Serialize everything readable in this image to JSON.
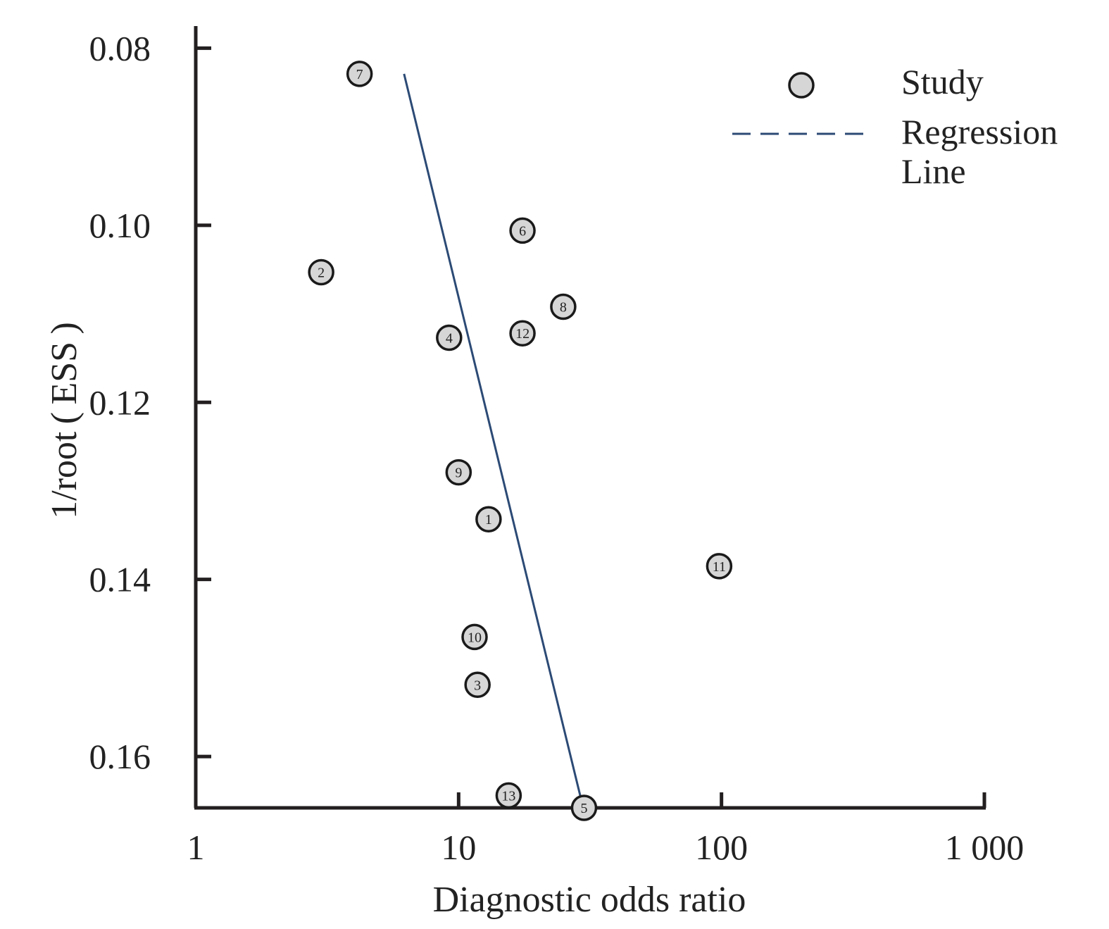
{
  "chart_data": {
    "type": "scatter",
    "xlabel": "Diagnostic odds ratio",
    "ylabel": "1/root ( ESS )",
    "x_scale": "log",
    "xlim": [
      1,
      1000
    ],
    "ylim": [
      0.0775,
      0.1658
    ],
    "y_inverted": true,
    "x_ticks": [
      1,
      10,
      100,
      1000
    ],
    "x_tick_labels": [
      "1",
      "10",
      "100",
      "1 000"
    ],
    "y_ticks": [
      0.08,
      0.1,
      0.12,
      0.14,
      0.16
    ],
    "y_tick_labels": [
      "0.08",
      "0.10",
      "0.12",
      "0.14",
      "0.16"
    ],
    "grid": false,
    "legend_position": "top-right",
    "legend": [
      {
        "label": "Study",
        "marker": "circle"
      },
      {
        "label_lines": [
          "Regression",
          "Line"
        ],
        "marker": "dashed-line"
      }
    ],
    "series": [
      {
        "name": "Study",
        "points": [
          {
            "label": "1",
            "x": 13.0,
            "y": 0.1332
          },
          {
            "label": "2",
            "x": 3.0,
            "y": 0.1053
          },
          {
            "label": "3",
            "x": 11.8,
            "y": 0.1519
          },
          {
            "label": "4",
            "x": 9.2,
            "y": 0.1127
          },
          {
            "label": "5",
            "x": 30.0,
            "y": 0.1658
          },
          {
            "label": "6",
            "x": 17.5,
            "y": 0.1006
          },
          {
            "label": "7",
            "x": 4.2,
            "y": 0.0829
          },
          {
            "label": "8",
            "x": 25.0,
            "y": 0.1092
          },
          {
            "label": "9",
            "x": 10.0,
            "y": 0.1279
          },
          {
            "label": "10",
            "x": 11.5,
            "y": 0.1465
          },
          {
            "label": "11",
            "x": 98.0,
            "y": 0.1385
          },
          {
            "label": "12",
            "x": 17.5,
            "y": 0.1122
          },
          {
            "label": "13",
            "x": 15.5,
            "y": 0.1644
          }
        ]
      },
      {
        "name": "Regression Line",
        "line": [
          {
            "x": 6.2,
            "y": 0.0829
          },
          {
            "x": 29.0,
            "y": 0.1644
          }
        ]
      }
    ],
    "colors": {
      "axis": "#231f20",
      "marker_fill": "#d6d6d6",
      "marker_edge": "#1a1a1a",
      "regression": "#2c4a75"
    }
  }
}
